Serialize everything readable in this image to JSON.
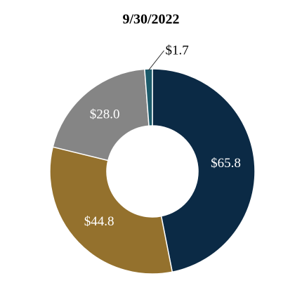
{
  "chart_data": {
    "type": "donut",
    "title": "9/30/2022",
    "values": [
      65.8,
      44.8,
      28.0,
      1.7
    ],
    "value_labels": [
      "$65.8",
      "$44.8",
      "$28.0",
      "$1.7"
    ],
    "colors": [
      "#0b2a45",
      "#94712d",
      "#858585",
      "#1b5a6a"
    ]
  }
}
